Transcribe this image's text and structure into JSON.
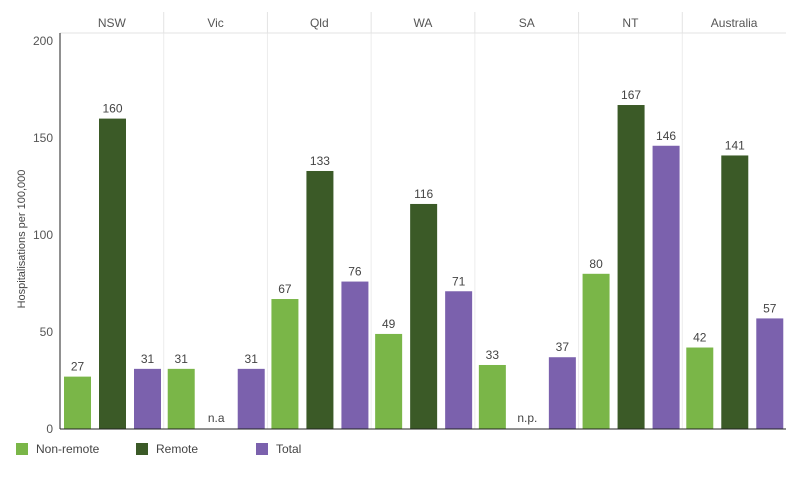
{
  "chart_data": {
    "type": "bar",
    "ylabel": "Hospitalisations per 100,000",
    "ylim": [
      0,
      200
    ],
    "yticks": [
      0,
      50,
      100,
      150,
      200
    ],
    "grid": false,
    "legend_position": "bottom-left",
    "panels": [
      {
        "name": "NSW",
        "values": [
          27,
          160,
          31
        ],
        "labels": [
          "27",
          "160",
          "31"
        ]
      },
      {
        "name": "Vic",
        "values": [
          31,
          null,
          31
        ],
        "labels": [
          "31",
          "n.a",
          "31"
        ]
      },
      {
        "name": "Qld",
        "values": [
          67,
          133,
          76
        ],
        "labels": [
          "67",
          "133",
          "76"
        ]
      },
      {
        "name": "WA",
        "values": [
          49,
          116,
          71
        ],
        "labels": [
          "49",
          "116",
          "71"
        ]
      },
      {
        "name": "SA",
        "values": [
          33,
          null,
          37
        ],
        "labels": [
          "33",
          "n.p.",
          "37"
        ]
      },
      {
        "name": "NT",
        "values": [
          80,
          167,
          146
        ],
        "labels": [
          "80",
          "167",
          "146"
        ]
      },
      {
        "name": "Australia",
        "values": [
          42,
          141,
          57
        ],
        "labels": [
          "42",
          "141",
          "57"
        ]
      }
    ],
    "series": [
      {
        "name": "Non-remote",
        "color": "#7ab648"
      },
      {
        "name": "Remote",
        "color": "#3b5a27"
      },
      {
        "name": "Total",
        "color": "#7b61ad"
      }
    ]
  }
}
